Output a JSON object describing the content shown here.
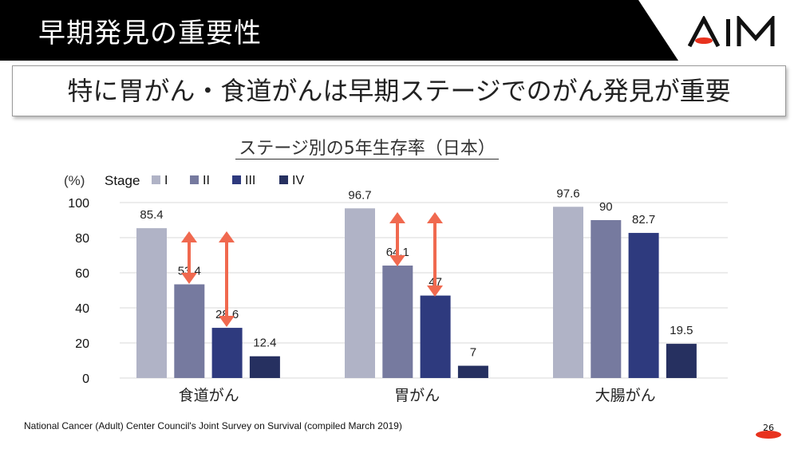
{
  "header": {
    "title": "早期発見の重要性",
    "logo_text": "AIM"
  },
  "subtitle": "特に胃がん・食道がんは早期ステージでのがん発見が重要",
  "footer": "National Cancer (Adult) Center Council's Joint Survey on Survival (compiled March 2019)",
  "page_number": "26",
  "colors": {
    "stage_I": "#b0b3c6",
    "stage_II": "#767a9f",
    "stage_III": "#2e3a7e",
    "stage_IV": "#263060",
    "arrow": "#f0694f",
    "logo_accent": "#e8321e"
  },
  "chart_data": {
    "type": "bar",
    "title": "ステージ別の5年生存率（日本）",
    "ylabel": "(%)",
    "legend_title": "Stage",
    "legend_position": "top-left",
    "categories": [
      "食道がん",
      "胃がん",
      "大腸がん"
    ],
    "series": [
      {
        "name": "I",
        "values": [
          85.4,
          96.7,
          97.6
        ]
      },
      {
        "name": "II",
        "values": [
          53.4,
          64.1,
          90
        ]
      },
      {
        "name": "III",
        "values": [
          28.6,
          47,
          82.7
        ]
      },
      {
        "name": "IV",
        "values": [
          12.4,
          7,
          19.5
        ]
      }
    ],
    "data_labels": [
      [
        "85.4",
        "96.7",
        "97.6"
      ],
      [
        "53.4",
        "64.1",
        "90"
      ],
      [
        "28.6",
        "47",
        "82.7"
      ],
      [
        "12.4",
        "7",
        "19.5"
      ]
    ],
    "ylim": [
      0,
      100
    ],
    "yticks": [
      "0",
      "20",
      "40",
      "60",
      "80",
      "100"
    ],
    "grid": true
  }
}
